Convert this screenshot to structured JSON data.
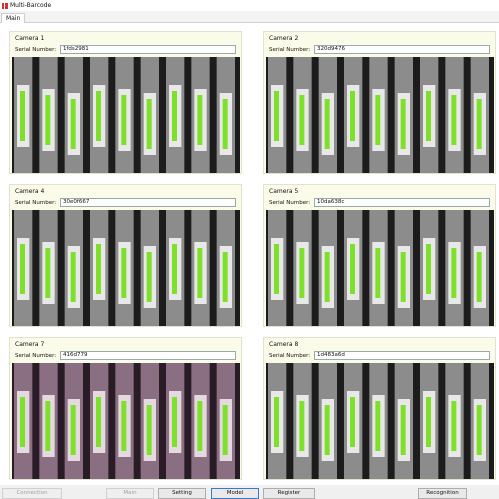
{
  "window": {
    "title": "Multi-Barcode"
  },
  "tabs": [
    {
      "label": "Main"
    }
  ],
  "cameras": [
    {
      "label": "Camera 1",
      "serial_label": "Serial Number:",
      "serial_value": "1fds2981",
      "tint": "gray"
    },
    {
      "label": "Camera 2",
      "serial_label": "Serial Number:",
      "serial_value": "320d9476",
      "tint": "gray"
    },
    {
      "label": "Camera 4",
      "serial_label": "Serial Number:",
      "serial_value": "30e0f667",
      "tint": "gray"
    },
    {
      "label": "Camera 5",
      "serial_label": "Serial Number:",
      "serial_value": "10da638c",
      "tint": "gray"
    },
    {
      "label": "Camera 7",
      "serial_label": "Serial Number:",
      "serial_value": "416d779",
      "tint": "purple"
    },
    {
      "label": "Camera 8",
      "serial_label": "Serial Number:",
      "serial_value": "1d483a6d",
      "tint": "gray"
    }
  ],
  "buttons": {
    "connection": "Connection",
    "main": "Main",
    "setting": "Setting",
    "model": "Model",
    "register": "Register",
    "recognition": "Recognition"
  }
}
